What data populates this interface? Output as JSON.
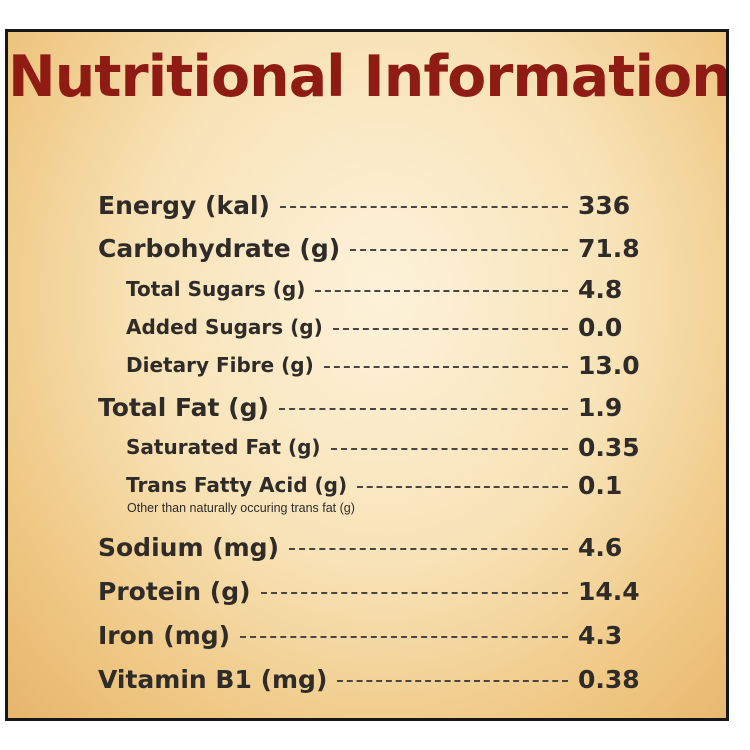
{
  "title": "Nutritional Information",
  "rows": [
    {
      "label": "Energy (kal)",
      "value": "336"
    },
    {
      "label": "Carbohydrate (g)",
      "value": "71.8"
    },
    {
      "label": "Total Sugars (g)",
      "value": "4.8"
    },
    {
      "label": "Added Sugars (g)",
      "value": "0.0"
    },
    {
      "label": "Dietary Fibre (g)",
      "value": "13.0"
    },
    {
      "label": "Total Fat (g)",
      "value": "1.9"
    },
    {
      "label": "Saturated Fat (g)",
      "value": "0.35"
    },
    {
      "label": "Trans Fatty Acid (g)",
      "value": "0.1"
    },
    {
      "label": "Sodium (mg)",
      "value": "4.6"
    },
    {
      "label": "Protein (g)",
      "value": "14.4"
    },
    {
      "label": "Iron (mg)",
      "value": "4.3"
    },
    {
      "label": "Vitamin B1 (mg)",
      "value": "0.38"
    }
  ],
  "trans_fat_note": "Other than naturally occuring trans fat (g)"
}
